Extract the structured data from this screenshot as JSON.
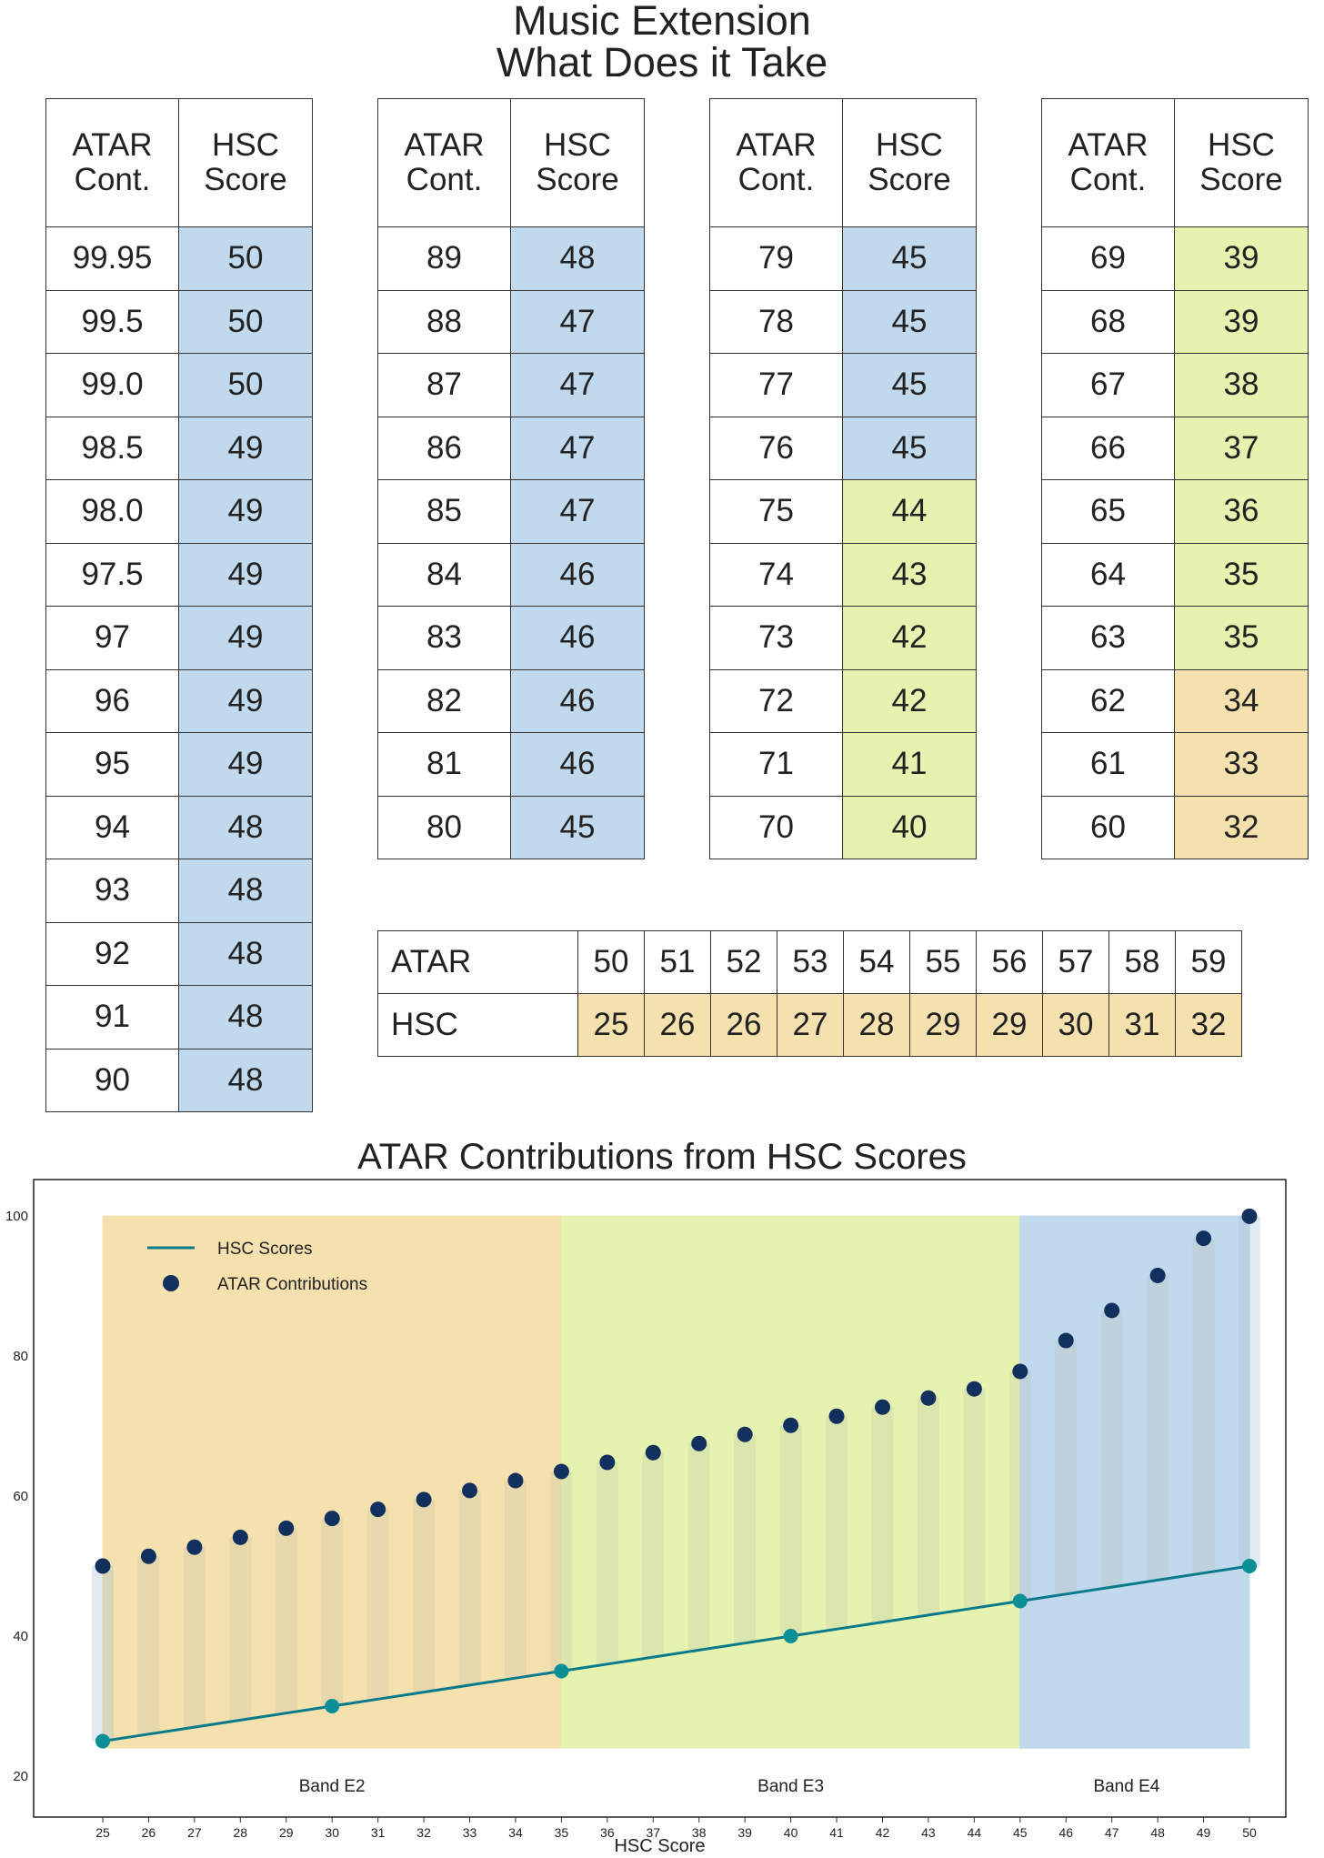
{
  "title_line1": "Music Extension",
  "title_line2": "What Does it Take",
  "tables": [
    {
      "header_atar": "ATAR Cont.",
      "header_hsc": "HSC Score",
      "rows": [
        {
          "atar": "99.95",
          "hsc": "50",
          "band": "blue"
        },
        {
          "atar": "99.5",
          "hsc": "50",
          "band": "blue"
        },
        {
          "atar": "99.0",
          "hsc": "50",
          "band": "blue"
        },
        {
          "atar": "98.5",
          "hsc": "49",
          "band": "blue"
        },
        {
          "atar": "98.0",
          "hsc": "49",
          "band": "blue"
        },
        {
          "atar": "97.5",
          "hsc": "49",
          "band": "blue"
        },
        {
          "atar": "97",
          "hsc": "49",
          "band": "blue"
        },
        {
          "atar": "96",
          "hsc": "49",
          "band": "blue"
        },
        {
          "atar": "95",
          "hsc": "49",
          "band": "blue"
        },
        {
          "atar": "94",
          "hsc": "48",
          "band": "blue"
        },
        {
          "atar": "93",
          "hsc": "48",
          "band": "blue"
        },
        {
          "atar": "92",
          "hsc": "48",
          "band": "blue"
        },
        {
          "atar": "91",
          "hsc": "48",
          "band": "blue"
        },
        {
          "atar": "90",
          "hsc": "48",
          "band": "blue"
        }
      ]
    },
    {
      "header_atar": "ATAR Cont.",
      "header_hsc": "HSC Score",
      "rows": [
        {
          "atar": "89",
          "hsc": "48",
          "band": "blue"
        },
        {
          "atar": "88",
          "hsc": "47",
          "band": "blue"
        },
        {
          "atar": "87",
          "hsc": "47",
          "band": "blue"
        },
        {
          "atar": "86",
          "hsc": "47",
          "band": "blue"
        },
        {
          "atar": "85",
          "hsc": "47",
          "band": "blue"
        },
        {
          "atar": "84",
          "hsc": "46",
          "band": "blue"
        },
        {
          "atar": "83",
          "hsc": "46",
          "band": "blue"
        },
        {
          "atar": "82",
          "hsc": "46",
          "band": "blue"
        },
        {
          "atar": "81",
          "hsc": "46",
          "band": "blue"
        },
        {
          "atar": "80",
          "hsc": "45",
          "band": "blue"
        }
      ]
    },
    {
      "header_atar": "ATAR Cont.",
      "header_hsc": "HSC Score",
      "rows": [
        {
          "atar": "79",
          "hsc": "45",
          "band": "blue"
        },
        {
          "atar": "78",
          "hsc": "45",
          "band": "blue"
        },
        {
          "atar": "77",
          "hsc": "45",
          "band": "blue"
        },
        {
          "atar": "76",
          "hsc": "45",
          "band": "blue"
        },
        {
          "atar": "75",
          "hsc": "44",
          "band": "yellow"
        },
        {
          "atar": "74",
          "hsc": "43",
          "band": "yellow"
        },
        {
          "atar": "73",
          "hsc": "42",
          "band": "yellow"
        },
        {
          "atar": "72",
          "hsc": "42",
          "band": "yellow"
        },
        {
          "atar": "71",
          "hsc": "41",
          "band": "yellow"
        },
        {
          "atar": "70",
          "hsc": "40",
          "band": "yellow"
        }
      ]
    },
    {
      "header_atar": "ATAR Cont.",
      "header_hsc": "HSC Score",
      "rows": [
        {
          "atar": "69",
          "hsc": "39",
          "band": "yellow"
        },
        {
          "atar": "68",
          "hsc": "39",
          "band": "yellow"
        },
        {
          "atar": "67",
          "hsc": "38",
          "band": "yellow"
        },
        {
          "atar": "66",
          "hsc": "37",
          "band": "yellow"
        },
        {
          "atar": "65",
          "hsc": "36",
          "band": "yellow"
        },
        {
          "atar": "64",
          "hsc": "35",
          "band": "yellow"
        },
        {
          "atar": "63",
          "hsc": "35",
          "band": "yellow"
        },
        {
          "atar": "62",
          "hsc": "34",
          "band": "orange"
        },
        {
          "atar": "61",
          "hsc": "33",
          "band": "orange"
        },
        {
          "atar": "60",
          "hsc": "32",
          "band": "orange"
        }
      ]
    }
  ],
  "low_table": {
    "atar_label": "ATAR",
    "hsc_label": "HSC",
    "atar": [
      "50",
      "51",
      "52",
      "53",
      "54",
      "55",
      "56",
      "57",
      "58",
      "59"
    ],
    "hsc": [
      "25",
      "26",
      "26",
      "27",
      "28",
      "29",
      "29",
      "30",
      "31",
      "32"
    ]
  },
  "colors": {
    "band_e4": "#c0d9ec",
    "band_e3": "#e6f3b0",
    "band_e2": "#f4e1ae",
    "line": "#087a8c",
    "line_marker": "#0b8f96",
    "dots": "#12305e"
  },
  "chart_data": {
    "type": "line",
    "title": "ATAR Contributions from HSC Scores",
    "xlabel": "HSC Score",
    "ylabel": "",
    "xlim": [
      24.8,
      51.6
    ],
    "ylim": [
      17,
      106
    ],
    "yticks": [
      20,
      40,
      60,
      80,
      100
    ],
    "x": [
      25,
      26,
      27,
      28,
      29,
      30,
      31,
      32,
      33,
      34,
      35,
      36,
      37,
      38,
      39,
      40,
      41,
      42,
      43,
      44,
      45,
      46,
      47,
      48,
      49,
      50
    ],
    "series": [
      {
        "name": "HSC Scores",
        "type": "line",
        "values": [
          25,
          26,
          27,
          28,
          29,
          30,
          31,
          32,
          33,
          34,
          35,
          36,
          37,
          38,
          39,
          40,
          41,
          42,
          43,
          44,
          45,
          46,
          47,
          48,
          49,
          50
        ],
        "marker_x": [
          25,
          30,
          35,
          40,
          45,
          50
        ]
      },
      {
        "name": "ATAR Contributions",
        "type": "scatter",
        "values": [
          50.0,
          51.4,
          52.7,
          54.1,
          55.4,
          56.8,
          58.1,
          59.5,
          60.8,
          62.2,
          63.5,
          64.8,
          66.2,
          67.5,
          68.8,
          70.1,
          71.4,
          72.7,
          74.0,
          75.3,
          77.8,
          82.2,
          86.5,
          91.5,
          96.8,
          99.95
        ]
      }
    ],
    "bands": [
      {
        "label": "Band E2",
        "from": 25,
        "to": 35,
        "color": "#f4e1ae"
      },
      {
        "label": "Band E3",
        "from": 35,
        "to": 45,
        "color": "#e6f3b0"
      },
      {
        "label": "Band E4",
        "from": 45,
        "to": 50,
        "color": "#c0d9ec"
      }
    ],
    "legend": "top-left"
  }
}
